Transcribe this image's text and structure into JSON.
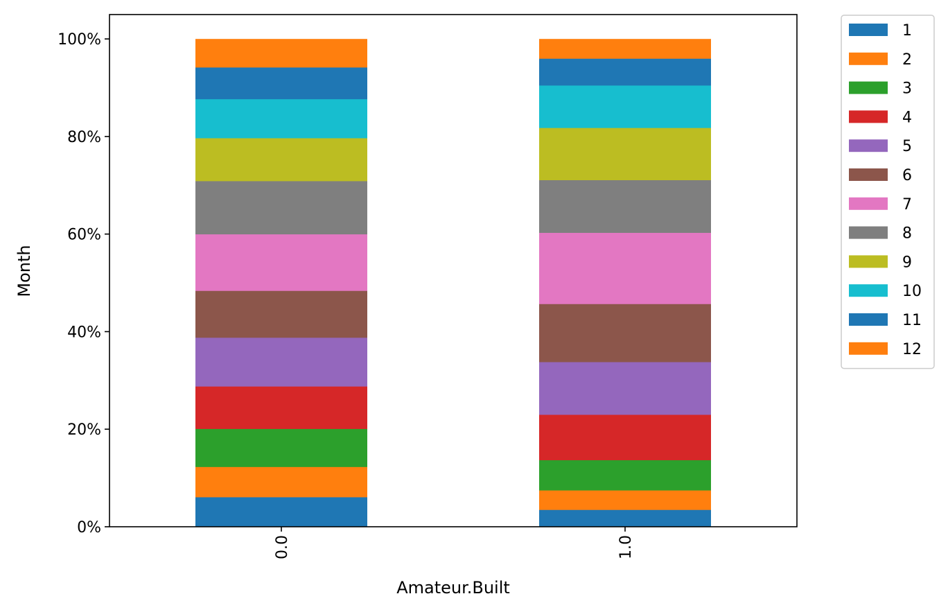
{
  "chart_data": {
    "type": "bar",
    "stacked": true,
    "normalized": true,
    "title": "",
    "xlabel": "Amateur.Built",
    "ylabel": "Month",
    "categories": [
      "0.0",
      "1.0"
    ],
    "ylim": [
      0,
      1.05
    ],
    "yticks": [
      {
        "value": 0.0,
        "label": "0%"
      },
      {
        "value": 0.2,
        "label": "20%"
      },
      {
        "value": 0.4,
        "label": "40%"
      },
      {
        "value": 0.6,
        "label": "60%"
      },
      {
        "value": 0.8,
        "label": "80%"
      },
      {
        "value": 1.0,
        "label": "100%"
      }
    ],
    "grid": false,
    "legend_position": "outside-top-right",
    "series": [
      {
        "name": "1",
        "color": "#1f77b4",
        "values": [
          0.061,
          0.035
        ]
      },
      {
        "name": "2",
        "color": "#ff7f0e",
        "values": [
          0.062,
          0.04
        ]
      },
      {
        "name": "3",
        "color": "#2ca02c",
        "values": [
          0.078,
          0.062
        ]
      },
      {
        "name": "4",
        "color": "#d62728",
        "values": [
          0.087,
          0.093
        ]
      },
      {
        "name": "5",
        "color": "#9467bd",
        "values": [
          0.1,
          0.108
        ]
      },
      {
        "name": "6",
        "color": "#8c564b",
        "values": [
          0.096,
          0.119
        ]
      },
      {
        "name": "7",
        "color": "#e377c2",
        "values": [
          0.116,
          0.146
        ]
      },
      {
        "name": "8",
        "color": "#7f7f7f",
        "values": [
          0.109,
          0.108
        ]
      },
      {
        "name": "9",
        "color": "#bcbd22",
        "values": [
          0.088,
          0.107
        ]
      },
      {
        "name": "10",
        "color": "#17becf",
        "values": [
          0.08,
          0.087
        ]
      },
      {
        "name": "11",
        "color": "#1f77b4",
        "values": [
          0.065,
          0.055
        ]
      },
      {
        "name": "12",
        "color": "#ff7f0e",
        "values": [
          0.058,
          0.04
        ]
      }
    ]
  }
}
